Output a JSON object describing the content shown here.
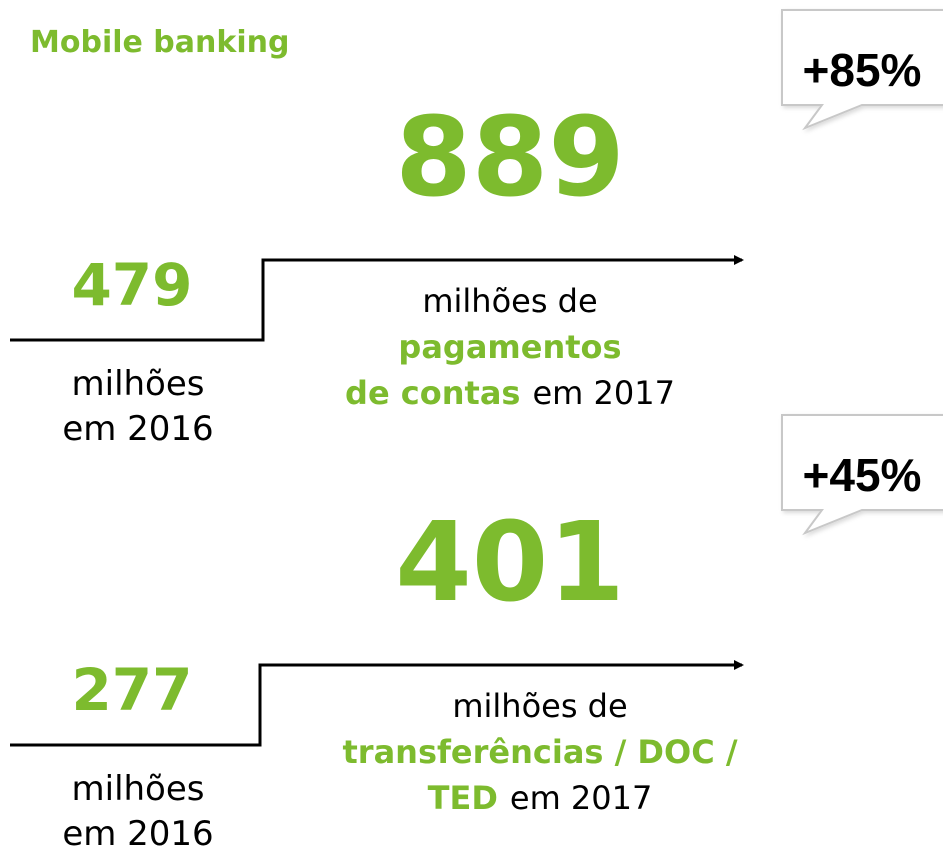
{
  "title": "Mobile banking",
  "blocks": [
    {
      "growth": "+85%",
      "value_2017": 889,
      "value_2016": 479,
      "label_2016": [
        "milhões",
        "em 2016"
      ],
      "description": [
        [
          {
            "text": "milhões de",
            "highlight": false
          }
        ],
        [
          {
            "text": "pagamentos",
            "highlight": true
          }
        ],
        [
          {
            "text": "de contas",
            "highlight": true
          },
          {
            "text": "em 2017",
            "highlight": false
          }
        ]
      ]
    },
    {
      "growth": "+45%",
      "value_2017": 401,
      "value_2016": 277,
      "label_2016": [
        "milhões",
        "em 2016"
      ],
      "description": [
        [
          {
            "text": "milhões de",
            "highlight": false
          }
        ],
        [
          {
            "text": "transferências / DOC /",
            "highlight": true
          }
        ],
        [
          {
            "text": "TED",
            "highlight": true
          },
          {
            "text": "em 2017",
            "highlight": false
          }
        ]
      ]
    }
  ]
}
